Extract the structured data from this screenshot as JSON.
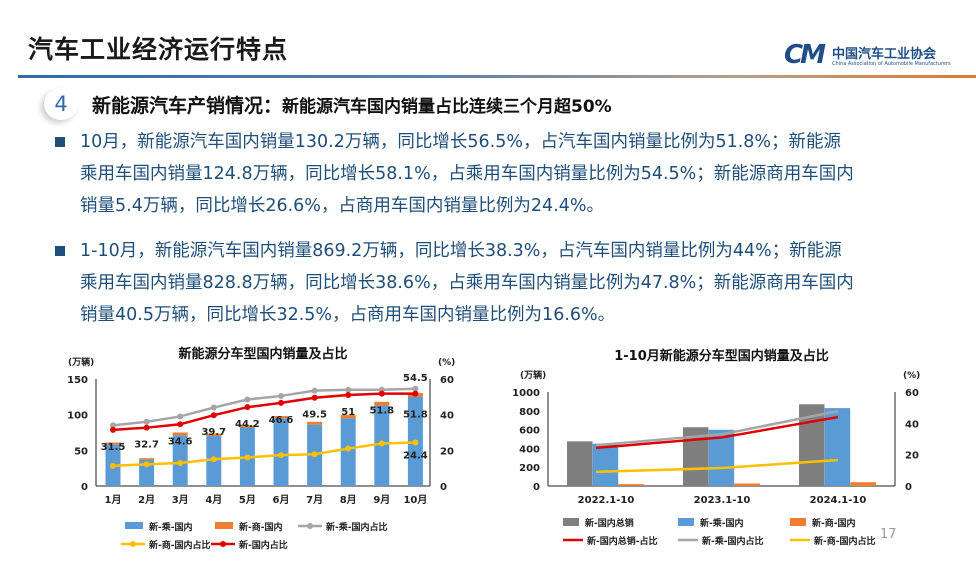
{
  "header": {
    "title": "汽车工业经济运行特点",
    "logo_cn": "中国汽车工业协会",
    "logo_en": "China Association of Automobile Manufacturers",
    "logo_mark": "CM"
  },
  "section": {
    "number": "4",
    "title": "新能源汽车产销情况：",
    "subtitle": "新能源汽车国内销量占比连续三个月超50%"
  },
  "bullets": [
    {
      "lines": [
        "10月，新能源汽车国内销量130.2万辆，同比增长56.5%，占汽车国内销量比例为51.8%；新能源",
        "乘用车国内销量124.8万辆，同比增长58.1%，占乘用车国内销量比例为54.5%；新能源商用车国内",
        "销量5.4万辆，同比增长26.6%，占商用车国内销量比例为24.4%。"
      ]
    },
    {
      "lines": [
        "1-10月，新能源汽车国内销量869.2万辆，同比增长38.3%，占汽车国内销量比例为44%；新能源",
        "乘用车国内销量828.8万辆，同比增长38.6%，占乘用车国内销量比例为47.8%；新能源商用车国内",
        "销量40.5万辆，同比增长32.5%，占商用车国内销量比例为16.6%。"
      ]
    }
  ],
  "page_number": "17",
  "chart_data": [
    {
      "type": "bar+line",
      "title": "新能源分车型国内销量及占比",
      "ylabel": "(万辆)",
      "y2label": "(%)",
      "ylim": [
        0,
        150
      ],
      "y2lim": [
        0,
        60
      ],
      "yticks": [
        "0",
        "50",
        "100",
        "150"
      ],
      "y2ticks": [
        "0",
        "20",
        "40",
        "60"
      ],
      "categories": [
        "1月",
        "2月",
        "3月",
        "4月",
        "5月",
        "6月",
        "7月",
        "8月",
        "9月",
        "10月"
      ],
      "bars_stacked": [
        {
          "name": "新-乘-国内",
          "color": "#5b9bd5",
          "values": [
            58,
            37,
            71,
            70,
            82,
            95,
            86,
            95,
            113,
            124.8
          ]
        },
        {
          "name": "新-商-国内",
          "color": "#ed7d31",
          "values": [
            3,
            2,
            4,
            3.5,
            3,
            3,
            4,
            4.5,
            5,
            5.4
          ]
        }
      ],
      "lines": [
        {
          "name": "新-乘-国内占比",
          "color": "#a5a5a5",
          "values": [
            34,
            36,
            39,
            44,
            48.5,
            50.5,
            53.5,
            54,
            54,
            54.5
          ],
          "labels": [
            "",
            "",
            "",
            "",
            "",
            "",
            "",
            "",
            "",
            "54.5"
          ]
        },
        {
          "name": "新-商-国内占比",
          "color": "#ffc000",
          "values": [
            11.3,
            12.2,
            12.9,
            15,
            16,
            17.3,
            17.8,
            21,
            23.8,
            24.4
          ],
          "labels": [
            "",
            "",
            "",
            "",
            "",
            "",
            "",
            "",
            "",
            "24.4"
          ]
        },
        {
          "name": "新-国内占比",
          "color": "#e00000",
          "values": [
            31.5,
            32.7,
            34.6,
            39.7,
            44.2,
            46.6,
            49.5,
            51,
            51.8,
            51.8
          ],
          "labels": [
            "31.5",
            "32.7",
            "34.6",
            "39.7",
            "44.2",
            "46.6",
            "49.5",
            "51",
            "51.8",
            "51.8"
          ]
        }
      ],
      "legend": "bottom"
    },
    {
      "type": "bar+line",
      "title": "1-10月新能源分车型国内销量及占比",
      "ylabel": "(万辆)",
      "y2label": "(%)",
      "ylim": [
        0,
        1000
      ],
      "y2lim": [
        0,
        60
      ],
      "yticks": [
        "0",
        "200",
        "400",
        "600",
        "800",
        "1000"
      ],
      "y2ticks": [
        "0",
        "20",
        "40",
        "60"
      ],
      "categories": [
        "2022.1-10",
        "2023.1-10",
        "2024.1-10"
      ],
      "bars": [
        {
          "name": "新-国内总销",
          "color": "#7f7f7f",
          "values": [
            475,
            625,
            869.2
          ]
        },
        {
          "name": "新-乘-国内",
          "color": "#5b9bd5",
          "values": [
            450,
            598,
            828.8
          ]
        },
        {
          "name": "新-商-国内",
          "color": "#ed7d31",
          "values": [
            20,
            27,
            40.5
          ]
        }
      ],
      "lines": [
        {
          "name": "新-国内总销-占比",
          "color": "#e00000",
          "values": [
            24.3,
            31,
            44
          ]
        },
        {
          "name": "新-乘-国内占比",
          "color": "#a5a5a5",
          "values": [
            26,
            33,
            47.8
          ]
        },
        {
          "name": "新-商-国内占比",
          "color": "#ffc000",
          "values": [
            9,
            11.5,
            16.6
          ]
        }
      ],
      "legend": "bottom"
    }
  ]
}
